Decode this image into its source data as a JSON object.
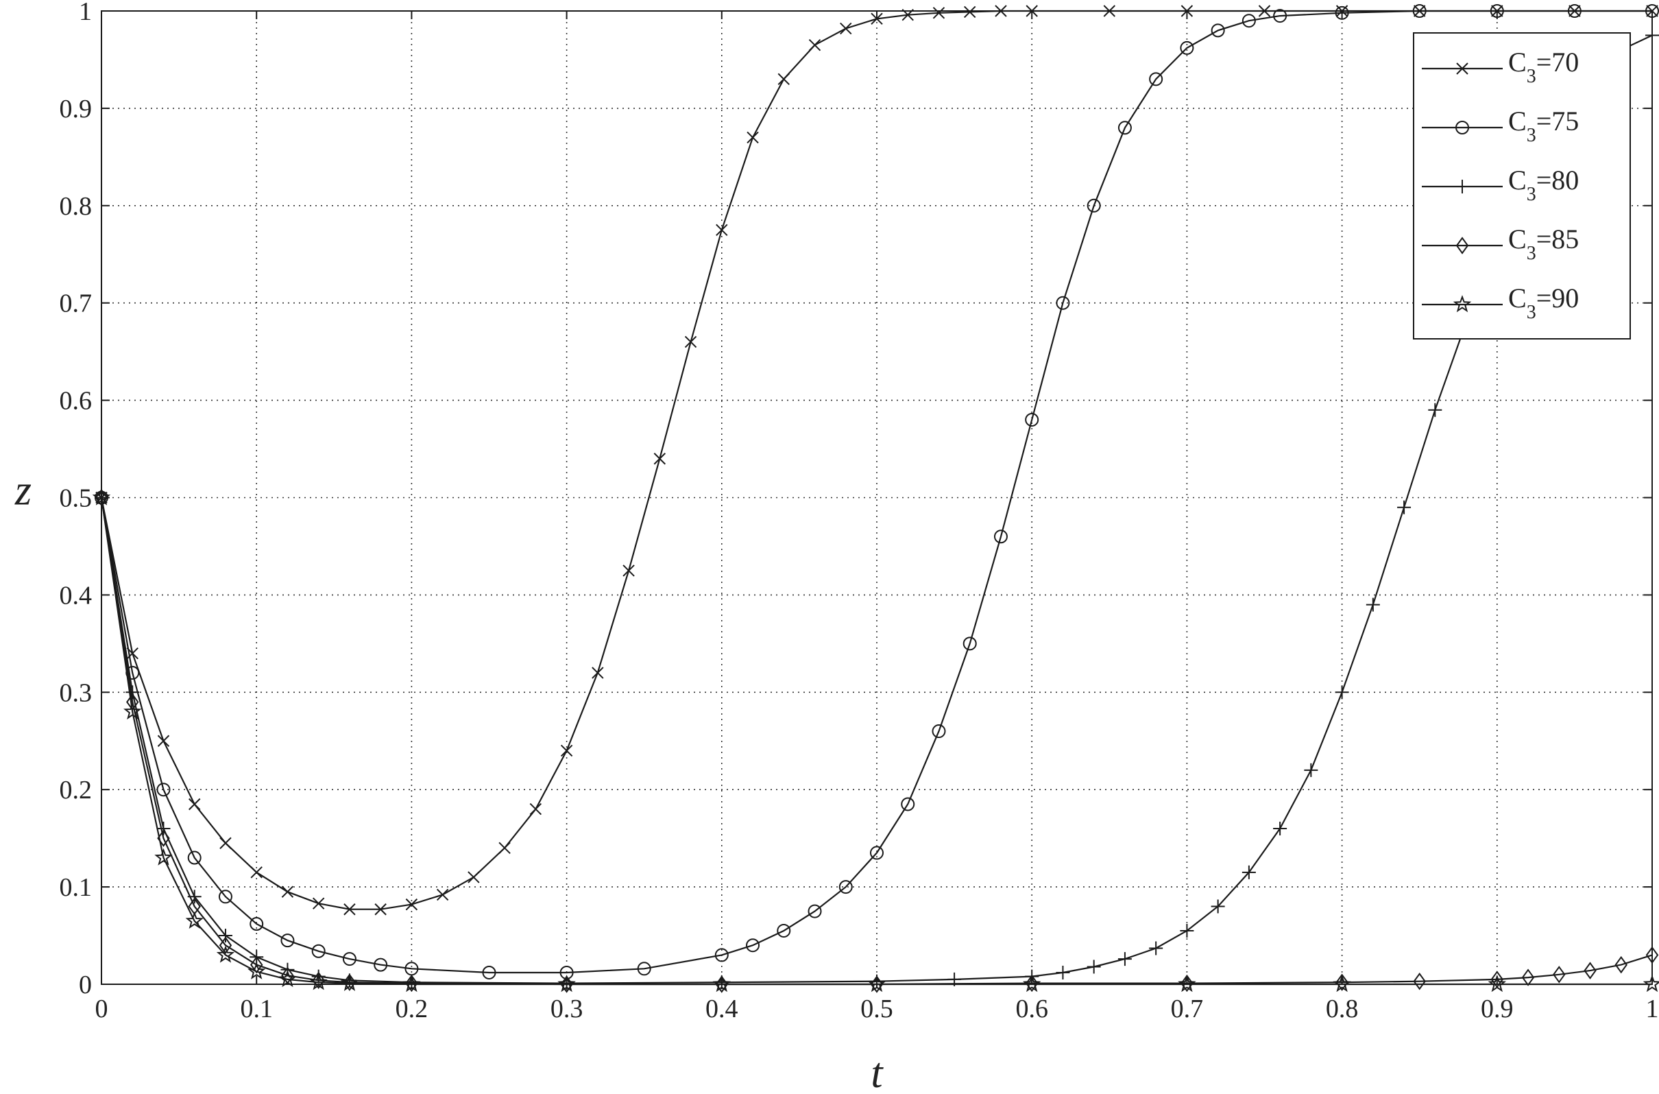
{
  "chart_data": {
    "type": "line",
    "xlabel": "t",
    "ylabel": "z",
    "xlim": [
      0,
      1
    ],
    "ylim": [
      0,
      1
    ],
    "xticks": [
      0,
      0.1,
      0.2,
      0.3,
      0.4,
      0.5,
      0.6,
      0.7,
      0.8,
      0.9,
      1
    ],
    "yticks": [
      0,
      0.1,
      0.2,
      0.3,
      0.4,
      0.5,
      0.6,
      0.7,
      0.8,
      0.9,
      1
    ],
    "xtick_labels": [
      "0",
      "0.1",
      "0.2",
      "0.3",
      "0.4",
      "0.5",
      "0.6",
      "0.7",
      "0.8",
      "0.9",
      "1"
    ],
    "ytick_labels": [
      "0",
      "0.1",
      "0.2",
      "0.3",
      "0.4",
      "0.5",
      "0.6",
      "0.7",
      "0.8",
      "0.9",
      "1"
    ],
    "grid": true,
    "legend_position": "top-right",
    "line_color": "#1a1a1a",
    "series": [
      {
        "name": "C3=70",
        "name_base": "C",
        "name_sub": "3",
        "name_rest": "=70",
        "marker": "x",
        "x": [
          0,
          0.02,
          0.04,
          0.06,
          0.08,
          0.1,
          0.12,
          0.14,
          0.16,
          0.18,
          0.2,
          0.22,
          0.24,
          0.26,
          0.28,
          0.3,
          0.32,
          0.34,
          0.36,
          0.38,
          0.4,
          0.42,
          0.44,
          0.46,
          0.48,
          0.5,
          0.52,
          0.54,
          0.56,
          0.58,
          0.6,
          0.65,
          0.7,
          0.75,
          0.8,
          0.85,
          0.9,
          0.95,
          1.0
        ],
        "y": [
          0.5,
          0.34,
          0.25,
          0.185,
          0.145,
          0.115,
          0.095,
          0.083,
          0.077,
          0.077,
          0.082,
          0.092,
          0.11,
          0.14,
          0.18,
          0.24,
          0.32,
          0.425,
          0.54,
          0.66,
          0.775,
          0.87,
          0.93,
          0.965,
          0.982,
          0.992,
          0.996,
          0.998,
          0.999,
          1,
          1,
          1,
          1,
          1,
          1,
          1,
          1,
          1,
          1
        ]
      },
      {
        "name": "C3=75",
        "name_base": "C",
        "name_sub": "3",
        "name_rest": "=75",
        "marker": "o",
        "x": [
          0,
          0.02,
          0.04,
          0.06,
          0.08,
          0.1,
          0.12,
          0.14,
          0.16,
          0.18,
          0.2,
          0.25,
          0.3,
          0.35,
          0.4,
          0.42,
          0.44,
          0.46,
          0.48,
          0.5,
          0.52,
          0.54,
          0.56,
          0.58,
          0.6,
          0.62,
          0.64,
          0.66,
          0.68,
          0.7,
          0.72,
          0.74,
          0.76,
          0.8,
          0.85,
          0.9,
          0.95,
          1.0
        ],
        "y": [
          0.5,
          0.32,
          0.2,
          0.13,
          0.09,
          0.062,
          0.045,
          0.034,
          0.026,
          0.02,
          0.016,
          0.012,
          0.012,
          0.016,
          0.03,
          0.04,
          0.055,
          0.075,
          0.1,
          0.135,
          0.185,
          0.26,
          0.35,
          0.46,
          0.58,
          0.7,
          0.8,
          0.88,
          0.93,
          0.962,
          0.98,
          0.99,
          0.995,
          0.998,
          1,
          1,
          1,
          1
        ]
      },
      {
        "name": "C3=80",
        "name_base": "C",
        "name_sub": "3",
        "name_rest": "=80",
        "marker": "+",
        "x": [
          0,
          0.02,
          0.04,
          0.06,
          0.08,
          0.1,
          0.12,
          0.14,
          0.16,
          0.2,
          0.3,
          0.4,
          0.5,
          0.55,
          0.6,
          0.62,
          0.64,
          0.66,
          0.68,
          0.7,
          0.72,
          0.74,
          0.76,
          0.78,
          0.8,
          0.82,
          0.84,
          0.86,
          0.88,
          0.9,
          0.92,
          0.94,
          0.96,
          0.98,
          1.0
        ],
        "y": [
          0.5,
          0.3,
          0.16,
          0.09,
          0.05,
          0.028,
          0.015,
          0.008,
          0.004,
          0.002,
          0.001,
          0.002,
          0.003,
          0.005,
          0.008,
          0.012,
          0.018,
          0.026,
          0.037,
          0.055,
          0.08,
          0.115,
          0.16,
          0.22,
          0.3,
          0.39,
          0.49,
          0.59,
          0.68,
          0.77,
          0.84,
          0.9,
          0.935,
          0.96,
          0.975
        ]
      },
      {
        "name": "C3=85",
        "name_base": "C",
        "name_sub": "3",
        "name_rest": "=85",
        "marker": "d",
        "x": [
          0,
          0.02,
          0.04,
          0.06,
          0.08,
          0.1,
          0.12,
          0.14,
          0.16,
          0.2,
          0.3,
          0.4,
          0.5,
          0.6,
          0.7,
          0.8,
          0.85,
          0.9,
          0.92,
          0.94,
          0.96,
          0.98,
          1.0
        ],
        "y": [
          0.5,
          0.29,
          0.15,
          0.08,
          0.04,
          0.02,
          0.009,
          0.004,
          0.002,
          0.001,
          0,
          0,
          0,
          0.001,
          0.001,
          0.002,
          0.003,
          0.005,
          0.007,
          0.01,
          0.014,
          0.02,
          0.03
        ]
      },
      {
        "name": "C3=90",
        "name_base": "C",
        "name_sub": "3",
        "name_rest": "=90",
        "marker": "star",
        "x": [
          0,
          0.02,
          0.04,
          0.06,
          0.08,
          0.1,
          0.12,
          0.14,
          0.16,
          0.2,
          0.3,
          0.4,
          0.5,
          0.6,
          0.7,
          0.8,
          0.9,
          1.0
        ],
        "y": [
          0.5,
          0.28,
          0.13,
          0.065,
          0.03,
          0.013,
          0.005,
          0.002,
          0.001,
          0,
          0,
          0,
          0,
          0,
          0,
          0,
          0,
          0
        ]
      }
    ]
  }
}
